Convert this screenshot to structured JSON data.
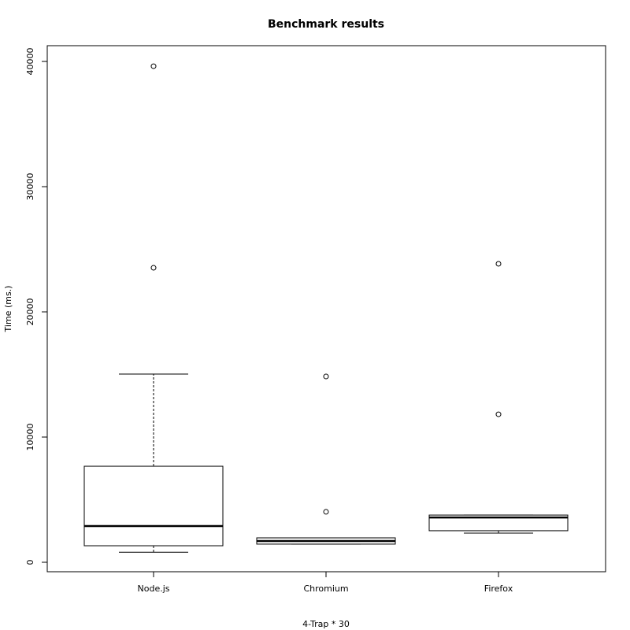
{
  "chart_data": {
    "type": "box",
    "title": "Benchmark results",
    "x_label": "4-Trap * 30",
    "y_label": "Time (ms.)",
    "categories": [
      "Node.js",
      "Chromium",
      "Firefox"
    ],
    "boxes": [
      {
        "whisker_low": 800,
        "q1": 1320,
        "median": 2890,
        "q3": 7670,
        "whisker_high": 15030,
        "outliers": [
          23520,
          39620
        ]
      },
      {
        "whisker_low": 1450,
        "q1": 1450,
        "median": 1700,
        "q3": 1950,
        "whisker_high": 1950,
        "outliers": [
          4030,
          14840
        ]
      },
      {
        "whisker_low": 2330,
        "q1": 2520,
        "median": 3580,
        "q3": 3770,
        "whisker_high": 3770,
        "outliers": [
          11820,
          23840
        ]
      }
    ],
    "color": "#000000",
    "ylim": [
      -755,
      41260
    ],
    "yticks": [
      0,
      10000,
      20000,
      30000,
      40000
    ]
  }
}
